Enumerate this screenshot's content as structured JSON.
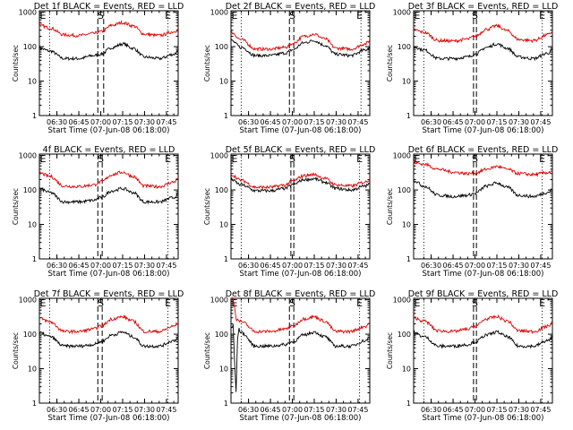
{
  "colors": {
    "events": "#000000",
    "lld": "#dd0000",
    "background": "#ffffff"
  },
  "axes": {
    "xlabel": "Start Time (07-Jun-08 06:18:00)",
    "ylabel": "Counts/sec",
    "x_tick_labels": [
      "06:30",
      "06:45",
      "07:00",
      "07:15",
      "07:30",
      "07:45"
    ],
    "y_tick_labels": [
      "1",
      "10",
      "100",
      "1000"
    ],
    "y_scale": "log",
    "ylim": [
      1,
      1100
    ],
    "xlim": [
      "06:18",
      "07:53"
    ]
  },
  "markers": [
    {
      "label": "E",
      "time": "06:18"
    },
    {
      "label": "S",
      "time": "07:00"
    },
    {
      "label": "E",
      "time": "07:46"
    }
  ],
  "chart_data": [
    {
      "type": "line",
      "title": "Det 1f BLACK = Events, RED = LLD",
      "saa_dashed": [
        "06:58",
        "07:02"
      ],
      "dotted": [
        "06:25",
        "07:46"
      ],
      "series": [
        {
          "x": [
            "06:18",
            "06:25",
            "06:35",
            "06:45",
            "06:55",
            "07:00",
            "07:08",
            "07:15",
            "07:22",
            "07:30",
            "07:40",
            "07:50",
            "07:53"
          ],
          "y": [
            90,
            75,
            45,
            45,
            55,
            60,
            95,
            120,
            90,
            50,
            45,
            60,
            75
          ]
        },
        {
          "x": [
            "06:18",
            "06:25",
            "06:35",
            "06:45",
            "06:55",
            "07:00",
            "07:08",
            "07:15",
            "07:22",
            "07:30",
            "07:40",
            "07:50",
            "07:53"
          ],
          "y": [
            420,
            350,
            220,
            210,
            240,
            270,
            420,
            500,
            400,
            230,
            210,
            270,
            310
          ]
        }
      ]
    },
    {
      "type": "line",
      "title": "Det 2f BLACK = Events, RED = LLD",
      "saa_dashed": [
        "06:58",
        "07:01"
      ],
      "dotted": [
        "06:25",
        "07:47"
      ],
      "series": [
        {
          "x": [
            "06:18",
            "06:25",
            "06:35",
            "06:45",
            "06:55",
            "07:00",
            "07:08",
            "07:15",
            "07:22",
            "07:30",
            "07:40",
            "07:50",
            "07:53"
          ],
          "y": [
            150,
            95,
            55,
            55,
            65,
            80,
            130,
            150,
            110,
            60,
            55,
            80,
            95
          ]
        },
        {
          "x": [
            "06:18",
            "06:25",
            "06:35",
            "06:45",
            "06:55",
            "07:00",
            "07:08",
            "07:15",
            "07:22",
            "07:30",
            "07:40",
            "07:50",
            "07:53"
          ],
          "y": [
            260,
            160,
            85,
            85,
            95,
            120,
            200,
            230,
            170,
            90,
            85,
            120,
            150
          ]
        }
      ]
    },
    {
      "type": "line",
      "title": "Det 3f BLACK = Events, RED = LLD",
      "saa_dashed": [
        "06:59",
        "07:01"
      ],
      "dotted": [
        "06:25",
        "07:46"
      ],
      "series": [
        {
          "x": [
            "06:18",
            "06:25",
            "06:35",
            "06:45",
            "06:55",
            "07:00",
            "07:08",
            "07:15",
            "07:22",
            "07:30",
            "07:40",
            "07:50",
            "07:53"
          ],
          "y": [
            100,
            80,
            45,
            45,
            50,
            60,
            95,
            120,
            90,
            50,
            45,
            65,
            80
          ]
        },
        {
          "x": [
            "06:18",
            "06:25",
            "06:35",
            "06:45",
            "06:55",
            "07:00",
            "07:08",
            "07:15",
            "07:22",
            "07:30",
            "07:40",
            "07:50",
            "07:53"
          ],
          "y": [
            310,
            260,
            150,
            145,
            165,
            200,
            320,
            400,
            290,
            160,
            150,
            220,
            270
          ]
        }
      ]
    },
    {
      "type": "line",
      "title": "4f BLACK = Events, RED = LLD",
      "saa_dashed": [
        "06:58",
        "07:01"
      ],
      "dotted": [
        "06:25",
        "07:46"
      ],
      "series": [
        {
          "x": [
            "06:18",
            "06:25",
            "06:35",
            "06:45",
            "06:55",
            "07:00",
            "07:08",
            "07:15",
            "07:22",
            "07:30",
            "07:40",
            "07:50",
            "07:53"
          ],
          "y": [
            110,
            85,
            45,
            45,
            50,
            60,
            95,
            110,
            85,
            45,
            45,
            60,
            75
          ]
        },
        {
          "x": [
            "06:18",
            "06:25",
            "06:35",
            "06:45",
            "06:55",
            "07:00",
            "07:08",
            "07:15",
            "07:22",
            "07:30",
            "07:40",
            "07:50",
            "07:53"
          ],
          "y": [
            310,
            250,
            130,
            125,
            140,
            170,
            280,
            330,
            250,
            130,
            125,
            170,
            220
          ]
        }
      ]
    },
    {
      "type": "line",
      "title": "Det 5f BLACK = Events, RED = LLD",
      "saa_dashed": [
        "06:59",
        "07:01"
      ],
      "dotted": [
        "06:25",
        "07:46"
      ],
      "series": [
        {
          "x": [
            "06:18",
            "06:25",
            "06:35",
            "06:45",
            "06:55",
            "07:00",
            "07:08",
            "07:15",
            "07:22",
            "07:30",
            "07:40",
            "07:50",
            "07:53"
          ],
          "y": [
            200,
            140,
            95,
            95,
            110,
            140,
            200,
            210,
            170,
            110,
            100,
            130,
            150
          ]
        },
        {
          "x": [
            "06:18",
            "06:25",
            "06:35",
            "06:45",
            "06:55",
            "07:00",
            "07:08",
            "07:15",
            "07:22",
            "07:30",
            "07:40",
            "07:50",
            "07:53"
          ],
          "y": [
            280,
            190,
            120,
            120,
            140,
            180,
            260,
            280,
            220,
            140,
            130,
            170,
            200
          ]
        }
      ]
    },
    {
      "type": "line",
      "title": "Det 6f BLACK = Events, RED = LLD",
      "saa_dashed": [
        "06:59",
        "07:01"
      ],
      "dotted": [
        "06:25",
        "07:46"
      ],
      "series": [
        {
          "x": [
            "06:18",
            "06:25",
            "06:35",
            "06:45",
            "06:55",
            "07:00",
            "07:08",
            "07:15",
            "07:22",
            "07:30",
            "07:40",
            "07:50",
            "07:53"
          ],
          "y": [
            190,
            130,
            70,
            65,
            70,
            80,
            130,
            160,
            120,
            70,
            65,
            85,
            105
          ]
        },
        {
          "x": [
            "06:18",
            "06:25",
            "06:35",
            "06:45",
            "06:55",
            "07:00",
            "07:08",
            "07:15",
            "07:22",
            "07:30",
            "07:40",
            "07:50",
            "07:53"
          ],
          "y": [
            620,
            560,
            400,
            330,
            300,
            310,
            400,
            480,
            400,
            300,
            280,
            320,
            360
          ]
        }
      ]
    },
    {
      "type": "line",
      "title": "Det 7f BLACK = Events, RED = LLD",
      "saa_dashed": [
        "06:58",
        "07:01"
      ],
      "dotted": [
        "06:25",
        "07:46"
      ],
      "series": [
        {
          "x": [
            "06:18",
            "06:25",
            "06:35",
            "06:45",
            "06:55",
            "07:00",
            "07:08",
            "07:15",
            "07:22",
            "07:30",
            "07:40",
            "07:50",
            "07:53"
          ],
          "y": [
            110,
            85,
            45,
            45,
            50,
            60,
            95,
            115,
            85,
            45,
            45,
            65,
            80
          ]
        },
        {
          "x": [
            "06:18",
            "06:25",
            "06:35",
            "06:45",
            "06:55",
            "07:00",
            "07:08",
            "07:15",
            "07:22",
            "07:30",
            "07:40",
            "07:50",
            "07:53"
          ],
          "y": [
            290,
            230,
            120,
            120,
            140,
            170,
            280,
            320,
            240,
            120,
            120,
            170,
            210
          ]
        }
      ]
    },
    {
      "type": "line",
      "title": "Det 8f BLACK = Events, RED = LLD",
      "saa_dashed": [
        "06:58",
        "07:01"
      ],
      "dotted": [
        "06:25",
        "07:46"
      ],
      "series": [
        {
          "x": [
            "06:18",
            "06:20",
            "06:21",
            "06:23",
            "06:25",
            "06:35",
            "06:45",
            "06:55",
            "07:00",
            "07:08",
            "07:15",
            "07:22",
            "07:30",
            "07:40",
            "07:50",
            "07:53"
          ],
          "y": [
            150,
            200,
            1,
            150,
            110,
            45,
            45,
            50,
            60,
            95,
            115,
            85,
            45,
            45,
            65,
            80
          ]
        },
        {
          "x": [
            "06:18",
            "06:20",
            "06:21",
            "06:23",
            "06:25",
            "06:35",
            "06:45",
            "06:55",
            "07:00",
            "07:08",
            "07:15",
            "07:22",
            "07:30",
            "07:40",
            "07:50",
            "07:53"
          ],
          "y": [
            1100,
            1100,
            300,
            250,
            230,
            120,
            120,
            140,
            170,
            280,
            320,
            240,
            120,
            120,
            170,
            210
          ]
        }
      ]
    },
    {
      "type": "line",
      "title": "Det 9f BLACK = Events, RED = LLD",
      "saa_dashed": [
        "06:59",
        "07:01"
      ],
      "dotted": [
        "06:25",
        "07:46"
      ],
      "series": [
        {
          "x": [
            "06:18",
            "06:25",
            "06:35",
            "06:45",
            "06:55",
            "07:00",
            "07:08",
            "07:15",
            "07:22",
            "07:30",
            "07:40",
            "07:50",
            "07:53"
          ],
          "y": [
            110,
            85,
            45,
            45,
            50,
            60,
            95,
            115,
            85,
            45,
            45,
            65,
            80
          ]
        },
        {
          "x": [
            "06:18",
            "06:25",
            "06:35",
            "06:45",
            "06:55",
            "07:00",
            "07:08",
            "07:15",
            "07:22",
            "07:30",
            "07:40",
            "07:50",
            "07:53"
          ],
          "y": [
            300,
            240,
            125,
            120,
            140,
            170,
            280,
            320,
            240,
            125,
            120,
            170,
            210
          ]
        }
      ]
    }
  ]
}
